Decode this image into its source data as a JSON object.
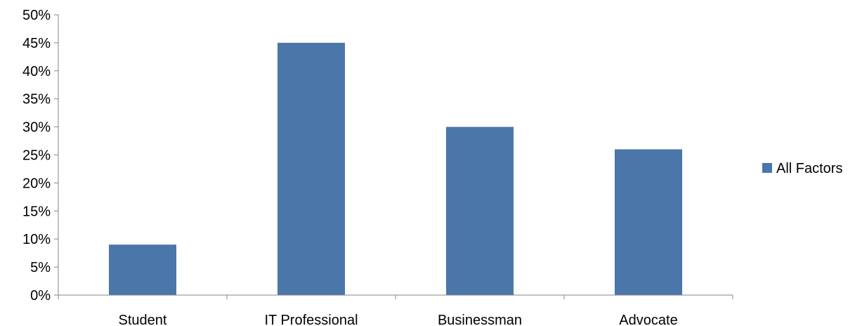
{
  "chart_data": {
    "type": "bar",
    "categories": [
      "Student",
      "IT Professional",
      "Businessman",
      "Advocate"
    ],
    "series": [
      {
        "name": "All Factors",
        "values": [
          9,
          45,
          30,
          26
        ],
        "color": "#4A76AA"
      }
    ],
    "ylim": [
      0,
      50
    ],
    "yticks": [
      0,
      5,
      10,
      15,
      20,
      25,
      30,
      35,
      40,
      45,
      50
    ],
    "ytick_labels": [
      "0%",
      "5%",
      "10%",
      "15%",
      "20%",
      "25%",
      "30%",
      "35%",
      "40%",
      "45%",
      "50%"
    ],
    "grid": false,
    "legend_position": "right",
    "axis_color": "#868686"
  }
}
